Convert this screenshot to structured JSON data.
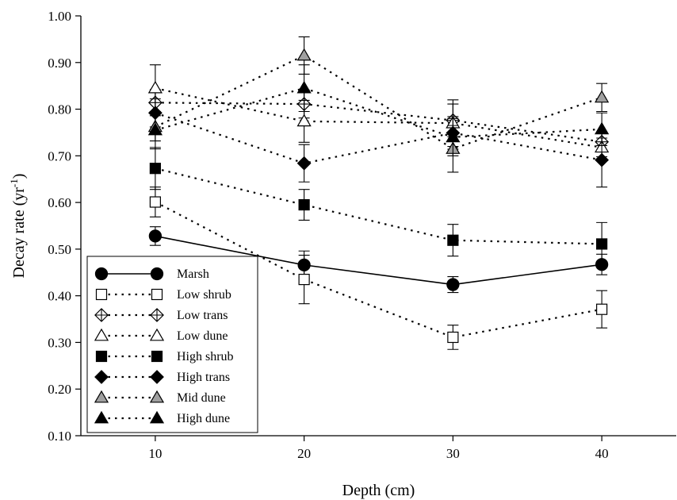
{
  "chart_data": {
    "type": "line",
    "title": "",
    "xlabel": "Depth (cm)",
    "ylabel_main": "Decay rate (yr",
    "ylabel_sup": "-1",
    "ylabel_close": ")",
    "xlim": [
      5,
      45
    ],
    "ylim": [
      0.1,
      1.0
    ],
    "xticks": [
      10,
      20,
      30,
      40
    ],
    "xtick_labels": [
      "10",
      "20",
      "30",
      "40"
    ],
    "yticks": [
      0.1,
      0.2,
      0.3,
      0.4,
      0.5,
      0.6,
      0.7,
      0.8,
      0.9,
      1.0
    ],
    "ytick_labels": [
      "0.10",
      "0.20",
      "0.30",
      "0.40",
      "0.50",
      "0.60",
      "0.70",
      "0.80",
      "0.90",
      "1.00"
    ],
    "grid": false,
    "legend_position": "bottom-left",
    "x": [
      10,
      20,
      30,
      40
    ],
    "series": [
      {
        "name": "Marsh",
        "values": [
          0.528,
          0.466,
          0.424,
          0.467
        ],
        "err": [
          0.02,
          0.03,
          0.017,
          0.022
        ],
        "marker": "circle",
        "fill": "black",
        "line": "solid"
      },
      {
        "name": "Low shrub",
        "values": [
          0.601,
          0.435,
          0.311,
          0.371
        ],
        "err": [
          0.032,
          0.052,
          0.026,
          0.04
        ],
        "marker": "square",
        "fill": "white",
        "line": "dotted"
      },
      {
        "name": "Low trans",
        "values": [
          0.814,
          0.811,
          0.776,
          0.73
        ],
        "err": [
          0.028,
          0.03,
          0.035,
          0.02
        ],
        "marker": "diamond-cross",
        "fill": "white",
        "line": "dotted"
      },
      {
        "name": "Low dune",
        "values": [
          0.845,
          0.774,
          0.77,
          0.718
        ],
        "err": [
          0.05,
          0.045,
          0.05,
          0.02
        ],
        "marker": "triangle",
        "fill": "white",
        "line": "dotted"
      },
      {
        "name": "High shrub",
        "values": [
          0.673,
          0.595,
          0.519,
          0.511
        ],
        "err": [
          0.045,
          0.033,
          0.034,
          0.046
        ],
        "marker": "square",
        "fill": "black",
        "line": "dotted"
      },
      {
        "name": "High trans",
        "values": [
          0.792,
          0.684,
          0.749,
          0.691
        ],
        "err": [
          0.03,
          0.04,
          0.035,
          0.058
        ],
        "marker": "diamond",
        "fill": "black",
        "line": "dotted"
      },
      {
        "name": "Mid dune",
        "values": [
          0.762,
          0.915,
          0.715,
          0.825
        ],
        "err": [
          0.03,
          0.04,
          0.05,
          0.03
        ],
        "marker": "triangle",
        "fill": "gray",
        "line": "dotted"
      },
      {
        "name": "High dune",
        "values": [
          0.755,
          0.845,
          0.74,
          0.757
        ],
        "err": [
          0.04,
          0.05,
          0.04,
          0.035
        ],
        "marker": "triangle",
        "fill": "black",
        "line": "dotted"
      }
    ]
  }
}
